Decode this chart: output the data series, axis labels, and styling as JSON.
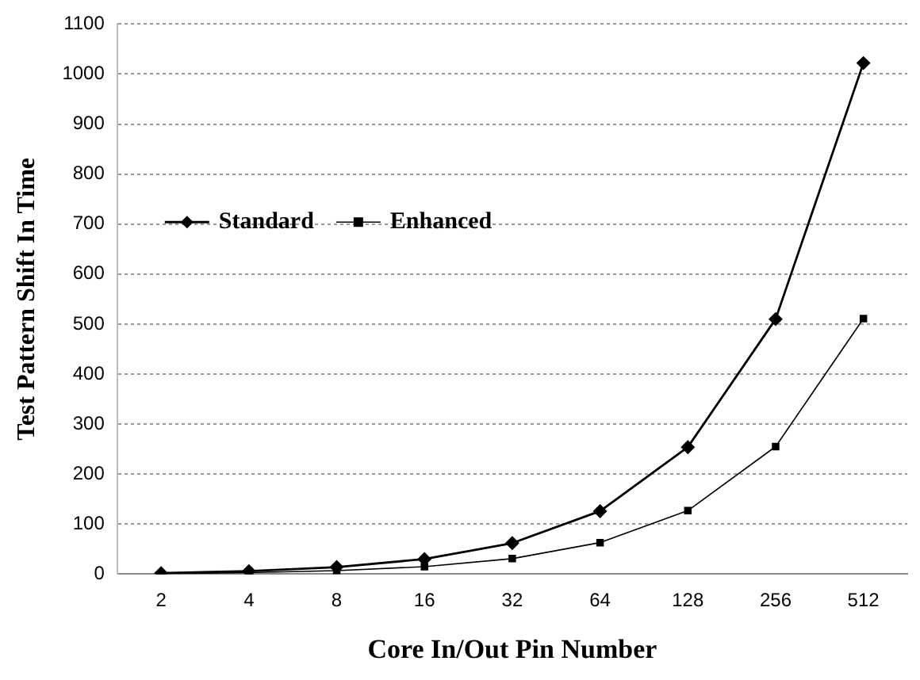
{
  "chart_data": {
    "type": "line",
    "xlabel": "Core In/Out Pin Number",
    "ylabel": "Test Pattern Shift In Time",
    "categories": [
      "2",
      "4",
      "8",
      "16",
      "32",
      "64",
      "128",
      "256",
      "512"
    ],
    "series": [
      {
        "name": "Standard",
        "color": "#000000",
        "marker": "diamond",
        "values": [
          2,
          6,
          14,
          30,
          62,
          126,
          254,
          510,
          1022
        ]
      },
      {
        "name": "Enhanced",
        "color": "#000000",
        "marker": "square",
        "values": [
          1,
          3,
          7,
          15,
          31,
          63,
          127,
          255,
          511
        ]
      }
    ],
    "ylim": [
      0,
      1100
    ],
    "yticks": [
      0,
      100,
      200,
      300,
      400,
      500,
      600,
      700,
      800,
      900,
      1000,
      1100
    ],
    "grid": "y",
    "legend": "left",
    "line_style": "solid"
  }
}
